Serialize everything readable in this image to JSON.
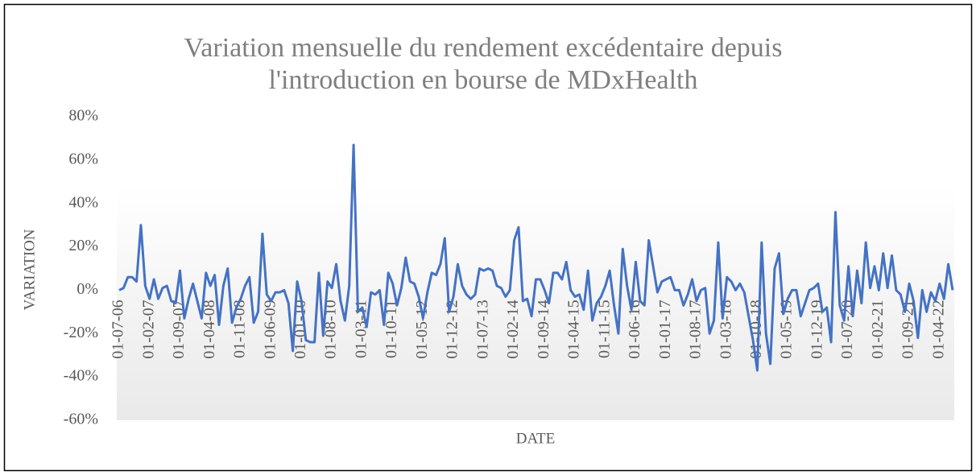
{
  "chart_data": {
    "type": "line",
    "title": [
      "Variation mensuelle du rendement excédentaire depuis",
      "l'introduction en bourse de MDxHealth"
    ],
    "x_label": "DATE",
    "y_label": "VARIATION",
    "categories": [
      "01-07-06",
      null,
      null,
      null,
      null,
      null,
      null,
      "01-02-07",
      null,
      null,
      null,
      null,
      null,
      null,
      "01-09-07",
      null,
      null,
      null,
      null,
      null,
      null,
      "01-04-08",
      null,
      null,
      null,
      null,
      null,
      null,
      "01-11-08",
      null,
      null,
      null,
      null,
      null,
      null,
      "01-06-09",
      null,
      null,
      null,
      null,
      null,
      null,
      "01-01-10",
      null,
      null,
      null,
      null,
      null,
      null,
      "01-08-10",
      null,
      null,
      null,
      null,
      null,
      null,
      "01-03-11",
      null,
      null,
      null,
      null,
      null,
      null,
      "01-10-11",
      null,
      null,
      null,
      null,
      null,
      null,
      "01-05-12",
      null,
      null,
      null,
      null,
      null,
      null,
      "01-12-12",
      null,
      null,
      null,
      null,
      null,
      null,
      "01-07-13",
      null,
      null,
      null,
      null,
      null,
      null,
      "01-02-14",
      null,
      null,
      null,
      null,
      null,
      null,
      "01-09-14",
      null,
      null,
      null,
      null,
      null,
      null,
      "01-04-15",
      null,
      null,
      null,
      null,
      null,
      null,
      "01-11-15",
      null,
      null,
      null,
      null,
      null,
      null,
      "01-06-16",
      null,
      null,
      null,
      null,
      null,
      null,
      "01-01-17",
      null,
      null,
      null,
      null,
      null,
      null,
      "01-08-17",
      null,
      null,
      null,
      null,
      null,
      null,
      "01-03-18",
      null,
      null,
      null,
      null,
      null,
      null,
      "01-10-18",
      null,
      null,
      null,
      null,
      null,
      null,
      "01-05-19",
      null,
      null,
      null,
      null,
      null,
      null,
      "01-12-19",
      null,
      null,
      null,
      null,
      null,
      null,
      "01-07-20",
      null,
      null,
      null,
      null,
      null,
      null,
      "01-02-21",
      null,
      null,
      null,
      null,
      null,
      null,
      "01-09-21",
      null,
      null,
      null,
      null,
      null,
      null,
      "01-04-22",
      null,
      null,
      null
    ],
    "series": [
      {
        "name": "VARIATION",
        "color": "#4472c4",
        "values": [
          0,
          1,
          6,
          6,
          4,
          30,
          2,
          -4,
          5,
          -4,
          1,
          2,
          -5,
          -6,
          9,
          -13,
          -4,
          3,
          -5,
          -13,
          8,
          2,
          7,
          -16,
          2,
          10,
          -15,
          -8,
          -4,
          2,
          6,
          -15,
          -10,
          26,
          -2,
          -5,
          -1,
          -1,
          0,
          -6,
          -28,
          4,
          -5,
          -23,
          -24,
          -24,
          8,
          -21,
          4,
          1,
          12,
          -5,
          -14,
          2,
          67,
          -10,
          -8,
          -17,
          -1,
          -2,
          0,
          -16,
          8,
          3,
          -7,
          1,
          15,
          4,
          3,
          -3,
          -13,
          -1,
          8,
          7,
          12,
          24,
          -10,
          -3,
          12,
          2,
          -2,
          -4,
          -2,
          10,
          9,
          10,
          9,
          2,
          1,
          -3,
          0,
          23,
          29,
          -5,
          -4,
          -12,
          5,
          5,
          0,
          -6,
          8,
          8,
          5,
          13,
          0,
          -3,
          -2,
          -9,
          9,
          -14,
          -6,
          -3,
          2,
          9,
          -7,
          -20,
          19,
          2,
          -9,
          13,
          -5,
          -7,
          23,
          11,
          -1,
          4,
          5,
          6,
          0,
          0,
          -7,
          -2,
          5,
          -5,
          0,
          1,
          -20,
          -14,
          22,
          -13,
          6,
          4,
          0,
          3,
          -1,
          -12,
          -23,
          -37,
          22,
          -20,
          -34,
          10,
          17,
          -11,
          -4,
          0,
          0,
          -12,
          -6,
          0,
          1,
          3,
          -10,
          -8,
          -24,
          36,
          -7,
          -14,
          11,
          -12,
          9,
          -6,
          22,
          1,
          11,
          0,
          17,
          1,
          16,
          0,
          -2,
          -10,
          3,
          -5,
          -22,
          0,
          -10,
          -1,
          -5,
          3,
          -4,
          12,
          0
        ]
      }
    ],
    "ylim": [
      -60,
      80
    ],
    "yticks": [
      {
        "value": -60,
        "label": "-60%"
      },
      {
        "value": -40,
        "label": "-40%"
      },
      {
        "value": -20,
        "label": "-20%"
      },
      {
        "value": 0,
        "label": "0%"
      },
      {
        "value": 20,
        "label": "20%"
      },
      {
        "value": 40,
        "label": "40%"
      },
      {
        "value": 60,
        "label": "60%"
      },
      {
        "value": 80,
        "label": "80%"
      }
    ],
    "grid": false
  }
}
